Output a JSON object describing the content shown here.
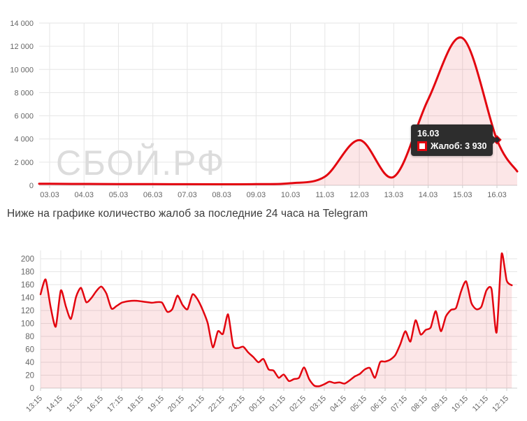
{
  "watermark": "СБОЙ.РФ",
  "subtitle": "Ниже на графике количество жалоб за последние 24 часа на Telegram",
  "tooltip": {
    "date": "16.03",
    "series": "Жалоб",
    "value": "3 930",
    "text": "Жалоб: 3 930"
  },
  "colors": {
    "line": "#e3050f",
    "fill": "rgba(227,5,15,0.10)",
    "grid": "#e6e6e6",
    "axis_line": "#d0d0d0",
    "tick": "#cccccc",
    "axis_text": "#666666",
    "watermark": "#dcdcdc",
    "tooltip_bg": "#2d2d2d",
    "tooltip_text": "#ffffff",
    "marker_fill": "#26262d"
  },
  "chart_data": [
    {
      "type": "area",
      "title": "",
      "xlabel": "",
      "ylabel": "",
      "categories": [
        "03.03",
        "04.03",
        "05.03",
        "06.03",
        "07.03",
        "08.03",
        "09.03",
        "10.03",
        "11.03",
        "12.03",
        "13.03",
        "14.03",
        "15.03",
        "16.03"
      ],
      "values": [
        130,
        120,
        110,
        105,
        95,
        90,
        100,
        180,
        750,
        3900,
        730,
        7400,
        12700,
        3930
      ],
      "tail_value": 1200,
      "ylim": [
        0,
        14000
      ],
      "y_tick_values": [
        0,
        2000,
        4000,
        6000,
        8000,
        10000,
        12000,
        14000
      ],
      "y_tick_labels": [
        "0",
        "2 000",
        "4 000",
        "6 000",
        "8 000",
        "10 000",
        "12 000",
        "14 000"
      ],
      "grid": true,
      "legend_position": "none",
      "selected_point": {
        "category": "16.03",
        "value": 3930
      }
    },
    {
      "type": "area",
      "title": "",
      "xlabel": "",
      "ylabel": "",
      "x_tick_labels": [
        "13:15",
        "14:15",
        "15:15",
        "16:15",
        "17:15",
        "18:15",
        "19:15",
        "20:15",
        "21:15",
        "22:15",
        "23:15",
        "00:15",
        "01:15",
        "02:15",
        "03:15",
        "04:15",
        "05:15",
        "06:15",
        "07:15",
        "08:15",
        "09:15",
        "10:15",
        "11:15",
        "12:15"
      ],
      "interval_minutes": 15,
      "start_label": "13:15",
      "values": [
        145,
        168,
        125,
        95,
        151,
        126,
        107,
        141,
        155,
        133,
        139,
        150,
        157,
        146,
        123,
        127,
        132,
        134,
        135,
        135,
        134,
        133,
        132,
        133,
        132,
        118,
        122,
        143,
        129,
        122,
        145,
        137,
        121,
        100,
        63,
        88,
        84,
        114,
        66,
        62,
        64,
        55,
        48,
        40,
        45,
        29,
        27,
        16,
        21,
        11,
        14,
        16,
        32,
        14,
        4,
        3,
        6,
        10,
        8,
        9,
        7,
        12,
        18,
        22,
        29,
        31,
        16,
        40,
        41,
        44,
        51,
        68,
        88,
        72,
        105,
        83,
        90,
        94,
        119,
        88,
        111,
        121,
        124,
        150,
        165,
        132,
        122,
        126,
        151,
        153,
        86,
        208,
        166,
        159
      ],
      "ylim": [
        0,
        213
      ],
      "y_tick_values": [
        0,
        20,
        40,
        60,
        80,
        100,
        120,
        140,
        160,
        180,
        200
      ],
      "y_tick_labels": [
        "0",
        "20",
        "40",
        "60",
        "80",
        "100",
        "120",
        "140",
        "160",
        "180",
        "200"
      ],
      "grid": true,
      "legend_position": "none"
    }
  ]
}
